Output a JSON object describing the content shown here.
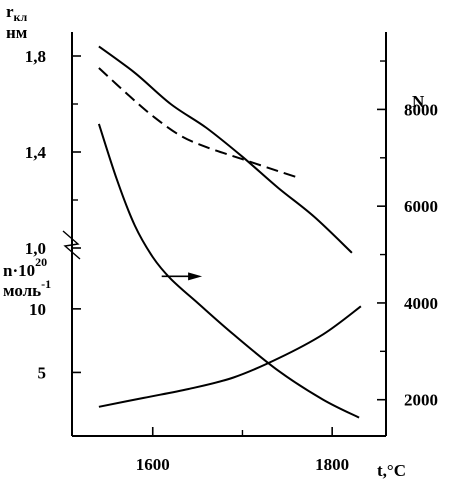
{
  "chart_data": {
    "type": "line",
    "x_axis": {
      "label": "t,°C",
      "ticks": [
        1600,
        1800
      ],
      "range": [
        1510,
        1860
      ]
    },
    "left_axis_upper": {
      "label_main": "r",
      "label_sub": "кл",
      "label_unit": "нм",
      "ticks": [
        "1,8",
        "1,4",
        "1,0"
      ],
      "tick_values": [
        1.8,
        1.4,
        1.0
      ],
      "range": [
        0.9,
        1.9
      ]
    },
    "left_axis_lower": {
      "label_main": "n·10",
      "label_exp": "20",
      "label_unit_main": "моль",
      "label_unit_exp": "-1",
      "ticks": [
        "10",
        "5"
      ],
      "tick_values": [
        10,
        5
      ],
      "range": [
        0,
        14
      ]
    },
    "right_axis": {
      "label": "N",
      "ticks": [
        "8000",
        "6000",
        "4000",
        "2000"
      ],
      "tick_values": [
        8000,
        6000,
        4000,
        2000
      ],
      "range": [
        1250,
        9600
      ]
    },
    "series": [
      {
        "axis": "upper",
        "style": "solid",
        "x": [
          1540,
          1580,
          1620,
          1660,
          1700,
          1740,
          1780,
          1822
        ],
        "y": [
          1.84,
          1.73,
          1.6,
          1.5,
          1.38,
          1.25,
          1.13,
          0.98
        ]
      },
      {
        "axis": "upper",
        "style": "dashed",
        "x": [
          1540,
          1575,
          1600,
          1630,
          1660,
          1700,
          1740,
          1765
        ],
        "y": [
          1.75,
          1.63,
          1.55,
          1.47,
          1.42,
          1.37,
          1.32,
          1.29
        ]
      },
      {
        "axis": "right",
        "style": "solid",
        "x": [
          1540,
          1560,
          1580,
          1600,
          1620,
          1650,
          1690,
          1740,
          1790,
          1830
        ],
        "y": [
          7700,
          6550,
          5600,
          4950,
          4500,
          4000,
          3350,
          2600,
          2000,
          1630
        ]
      },
      {
        "axis": "lower",
        "style": "solid",
        "x": [
          1540,
          1590,
          1640,
          1690,
          1740,
          1790,
          1832
        ],
        "y": [
          2.3,
          3.0,
          3.7,
          4.6,
          6.1,
          8.0,
          10.2
        ]
      }
    ],
    "annotations": [
      {
        "type": "arrow",
        "points_to": "right_axis",
        "x_from": 1610,
        "x_to": 1655,
        "y": 4550
      }
    ]
  }
}
